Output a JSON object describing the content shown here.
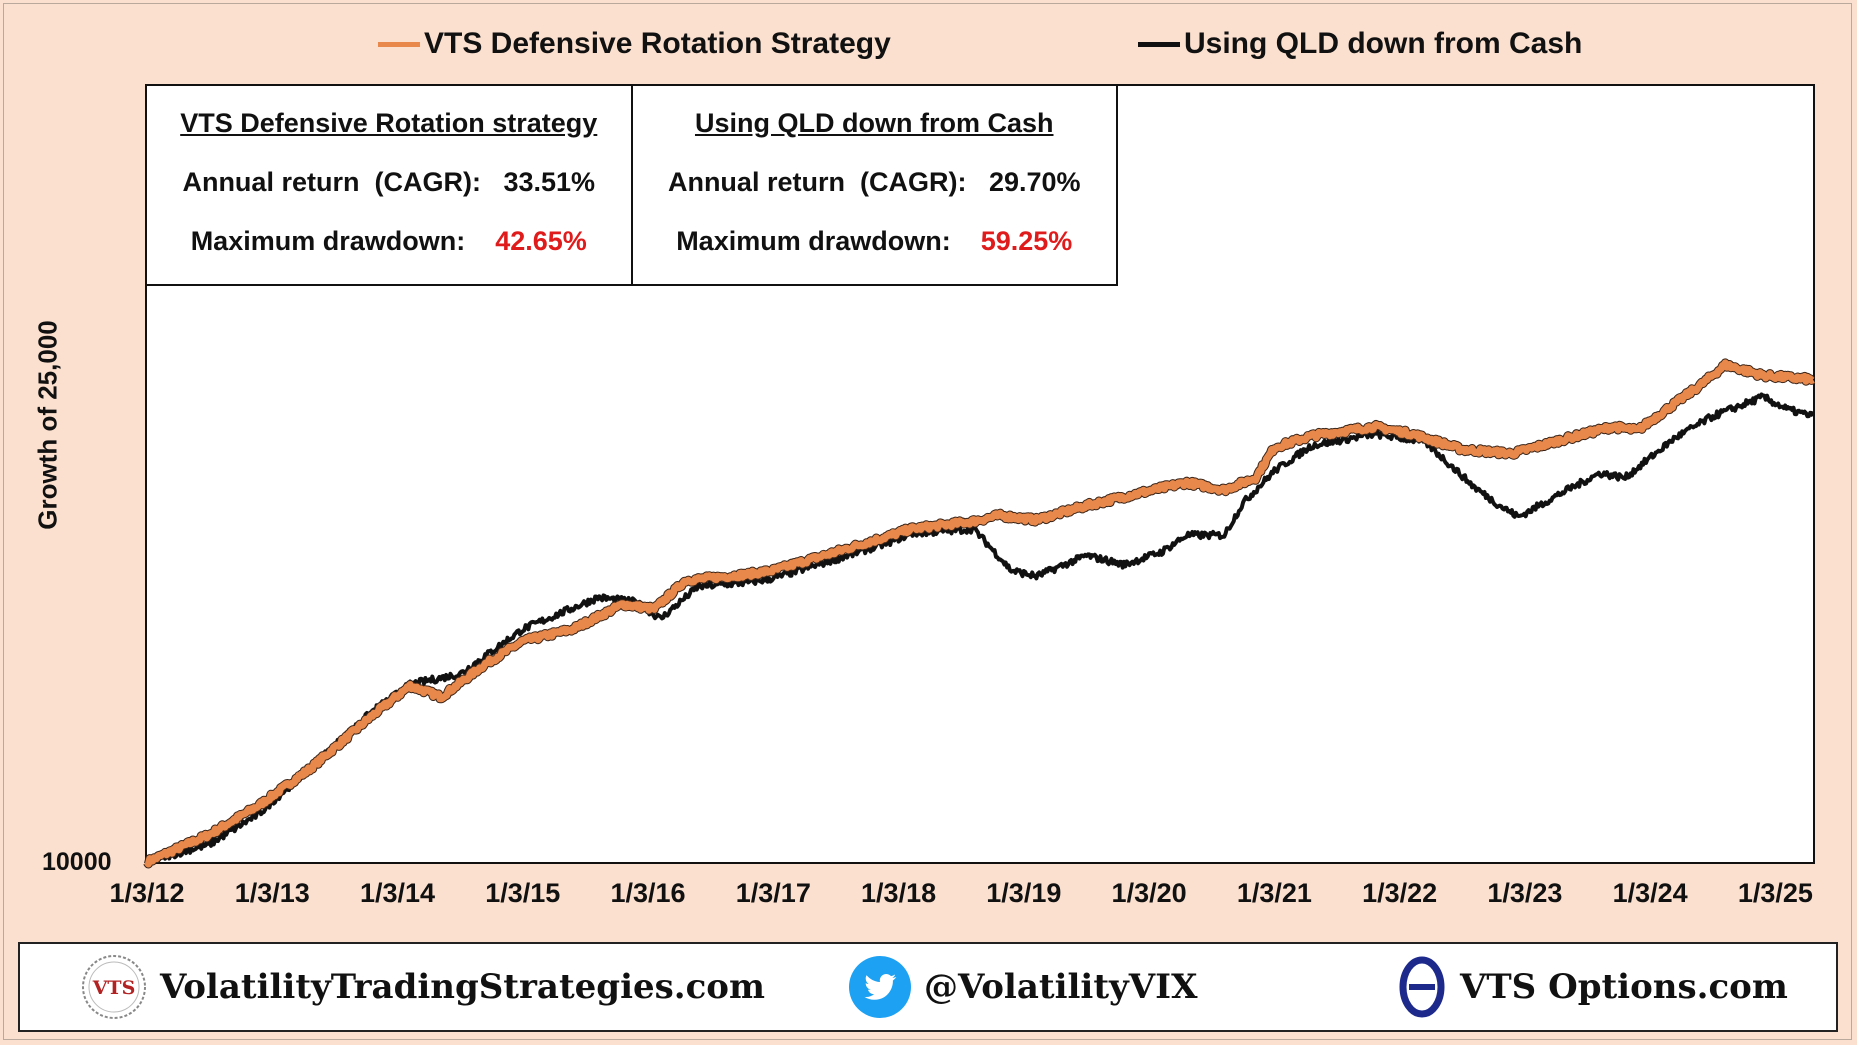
{
  "colors": {
    "background": "#fbe0cf",
    "strategy": "#e8884a",
    "qld": "#111111",
    "drawdown": "#e01b1b",
    "twitter": "#1da1f2",
    "options_logo": "#1d2a8c"
  },
  "legend": {
    "series_a": "VTS Defensive Rotation Strategy",
    "series_b": "Using QLD down from Cash"
  },
  "stats": {
    "strategy": {
      "title": "VTS Defensive Rotation strategy",
      "cagr_label": "Annual return  (CAGR):",
      "cagr_value": "33.51%",
      "dd_label": "Maximum drawdown:",
      "dd_value": "42.65%"
    },
    "qld": {
      "title": "Using QLD down from Cash",
      "cagr_label": "Annual return  (CAGR):",
      "cagr_value": "29.70%",
      "dd_label": "Maximum drawdown:",
      "dd_value": "59.25%"
    }
  },
  "chart_data": {
    "type": "line",
    "ylabel": "Growth of 25,000",
    "yscale": "log",
    "ylim": [
      10000,
      650000
    ],
    "yticks": [
      "10000"
    ],
    "xlim": [
      2012.0,
      2025.3
    ],
    "xticks": [
      "1/3/12",
      "1/3/13",
      "1/3/14",
      "1/3/15",
      "1/3/16",
      "1/3/17",
      "1/3/18",
      "1/3/19",
      "1/3/20",
      "1/3/21",
      "1/3/22",
      "1/3/23",
      "1/3/24",
      "1/3/25"
    ],
    "legend_position": "top",
    "grid": false,
    "series": [
      {
        "name": "VTS Defensive Rotation Strategy",
        "color": "#e8884a",
        "points": [
          [
            2012.0,
            10000
          ],
          [
            2012.5,
            11600
          ],
          [
            2012.9,
            13600
          ],
          [
            2013.3,
            16500
          ],
          [
            2013.8,
            22000
          ],
          [
            2014.1,
            25800
          ],
          [
            2014.35,
            24300
          ],
          [
            2014.7,
            29000
          ],
          [
            2015.0,
            32800
          ],
          [
            2015.4,
            35000
          ],
          [
            2015.8,
            40000
          ],
          [
            2016.05,
            39000
          ],
          [
            2016.3,
            45500
          ],
          [
            2016.8,
            47000
          ],
          [
            2017.0,
            48000
          ],
          [
            2017.5,
            53000
          ],
          [
            2017.9,
            57500
          ],
          [
            2018.1,
            60000
          ],
          [
            2018.6,
            62500
          ],
          [
            2018.8,
            64500
          ],
          [
            2019.1,
            63000
          ],
          [
            2019.5,
            68000
          ],
          [
            2019.9,
            72500
          ],
          [
            2020.3,
            77000
          ],
          [
            2020.6,
            74000
          ],
          [
            2020.85,
            79000
          ],
          [
            2021.0,
            93000
          ],
          [
            2021.3,
            99000
          ],
          [
            2021.8,
            104000
          ],
          [
            2022.1,
            100000
          ],
          [
            2022.5,
            92000
          ],
          [
            2022.9,
            90000
          ],
          [
            2023.3,
            97000
          ],
          [
            2023.7,
            104000
          ],
          [
            2023.9,
            102000
          ],
          [
            2024.4,
            130000
          ],
          [
            2024.6,
            145000
          ],
          [
            2024.9,
            137000
          ],
          [
            2025.3,
            134000
          ]
        ]
      },
      {
        "name": "Using QLD down from Cash",
        "color": "#111111",
        "points": [
          [
            2012.0,
            10000
          ],
          [
            2012.3,
            10600
          ],
          [
            2012.5,
            11000
          ],
          [
            2012.9,
            13000
          ],
          [
            2013.3,
            16600
          ],
          [
            2013.8,
            22500
          ],
          [
            2014.1,
            26000
          ],
          [
            2014.5,
            27500
          ],
          [
            2015.0,
            35000
          ],
          [
            2015.6,
            41500
          ],
          [
            2015.9,
            40500
          ],
          [
            2016.1,
            37000
          ],
          [
            2016.4,
            44000
          ],
          [
            2016.8,
            45000
          ],
          [
            2017.0,
            46000
          ],
          [
            2017.5,
            51000
          ],
          [
            2017.9,
            55500
          ],
          [
            2018.1,
            58500
          ],
          [
            2018.6,
            60000
          ],
          [
            2018.9,
            48000
          ],
          [
            2019.1,
            46500
          ],
          [
            2019.5,
            52000
          ],
          [
            2019.8,
            49500
          ],
          [
            2020.1,
            53000
          ],
          [
            2020.3,
            58000
          ],
          [
            2020.6,
            58000
          ],
          [
            2020.75,
            69000
          ],
          [
            2021.0,
            82000
          ],
          [
            2021.3,
            94000
          ],
          [
            2021.8,
            100000
          ],
          [
            2022.2,
            96000
          ],
          [
            2022.6,
            75000
          ],
          [
            2022.8,
            68000
          ],
          [
            2022.95,
            64000
          ],
          [
            2023.3,
            73000
          ],
          [
            2023.6,
            81000
          ],
          [
            2023.8,
            79000
          ],
          [
            2024.2,
            98000
          ],
          [
            2024.5,
            110000
          ],
          [
            2024.9,
            122000
          ],
          [
            2025.1,
            114000
          ],
          [
            2025.3,
            110000
          ]
        ]
      }
    ]
  },
  "footer": {
    "site_logo": "VTS",
    "site_text": "VolatilityTradingStrategies.com",
    "twitter_text": "@VolatilityVIX",
    "options_text": "VTS Options.com"
  }
}
